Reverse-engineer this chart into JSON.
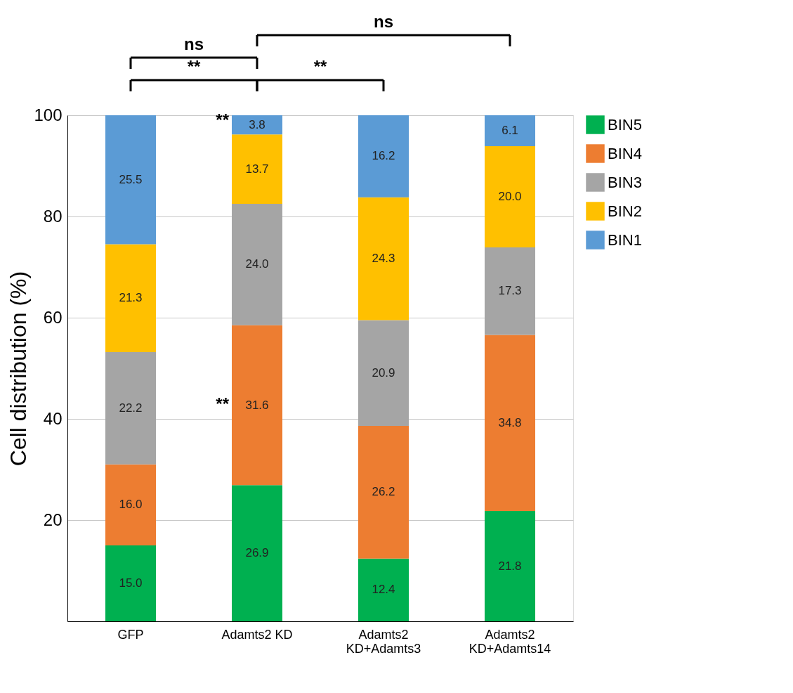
{
  "chart_data": {
    "type": "bar",
    "stacked": true,
    "ylabel": "Cell distribution (%)",
    "categories": [
      "GFP",
      "Adamts2 KD",
      "Adamts2\nKD+Adamts3",
      "Adamts2\nKD+Adamts14"
    ],
    "series": [
      {
        "name": "BIN5",
        "color": "#00b050",
        "values": [
          15.0,
          26.9,
          12.4,
          21.8
        ],
        "value_labels": [
          "15.0",
          "26.9",
          "12.4",
          "21.8"
        ]
      },
      {
        "name": "BIN4",
        "color": "#ed7d31",
        "values": [
          16.0,
          31.6,
          26.2,
          34.8
        ],
        "value_labels": [
          "16.0",
          "31.6",
          "26.2",
          "34.8"
        ]
      },
      {
        "name": "BIN3",
        "color": "#a5a5a5",
        "values": [
          22.2,
          24.0,
          20.9,
          17.3
        ],
        "value_labels": [
          "22.2",
          "24.0",
          "20.9",
          "17.3"
        ]
      },
      {
        "name": "BIN2",
        "color": "#ffc000",
        "values": [
          21.3,
          13.7,
          24.3,
          20.0
        ],
        "value_labels": [
          "21.3",
          "13.7",
          "24.3",
          "20.0"
        ]
      },
      {
        "name": "BIN1",
        "color": "#5b9bd5",
        "values": [
          25.5,
          3.8,
          16.2,
          6.1
        ],
        "value_labels": [
          "25.5",
          "3.8",
          "16.2",
          "6.1"
        ]
      }
    ],
    "ylim": [
      0,
      100
    ],
    "yticks": [
      20,
      40,
      60,
      80,
      100
    ],
    "grid": "y",
    "legend": "top right",
    "annotations": [
      "**",
      "**",
      "ns",
      "ns",
      "**",
      "**"
    ]
  }
}
